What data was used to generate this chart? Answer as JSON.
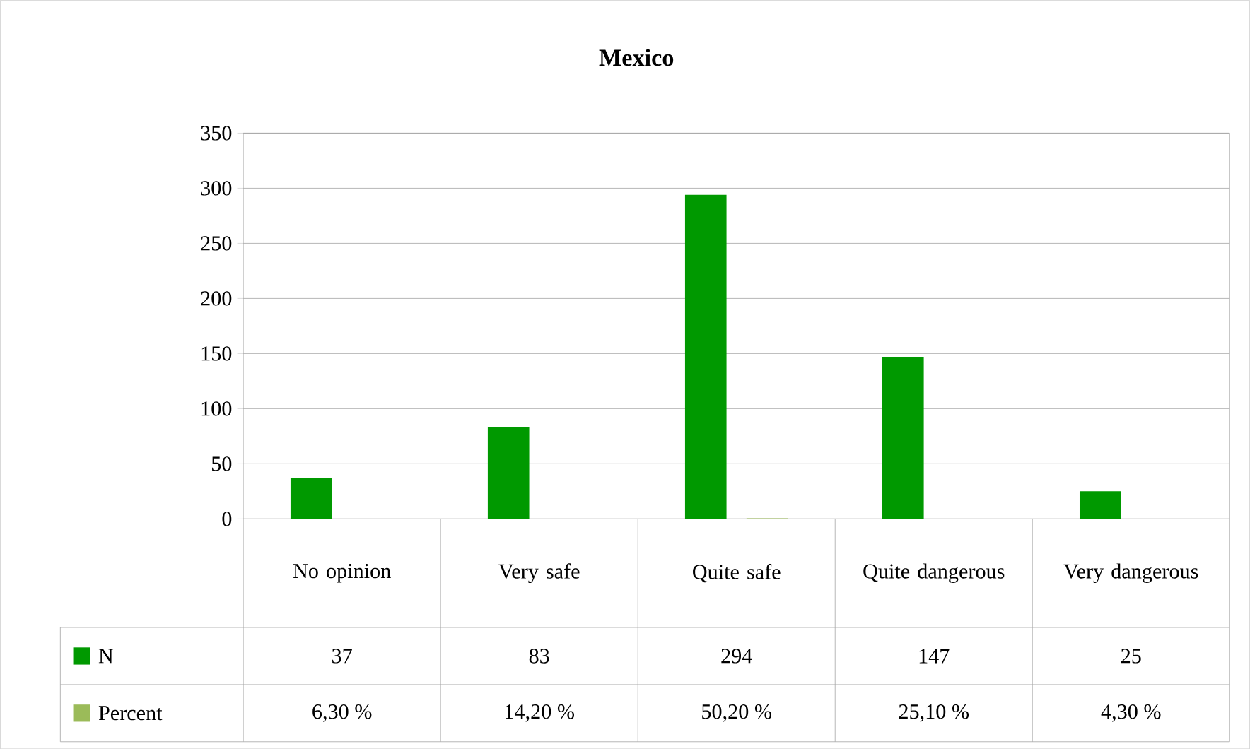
{
  "chart_data": {
    "type": "bar",
    "title": "Mexico",
    "categories": [
      "No opinion",
      "Very safe",
      "Quite safe",
      "Quite dangerous",
      "Very dangerous"
    ],
    "series": [
      {
        "name": "N",
        "color": "#009900",
        "values": [
          37,
          83,
          294,
          147,
          25
        ],
        "value_labels": [
          "37",
          "83",
          "294",
          "147",
          "25"
        ]
      },
      {
        "name": "Percent",
        "color": "#9bbb59",
        "values": [
          0.063,
          0.142,
          0.502,
          0.251,
          0.043
        ],
        "value_labels": [
          "6,30 %",
          "14,20 %",
          "50,20 %",
          "25,10 %",
          "4,30 %"
        ]
      }
    ],
    "ylim": [
      0,
      350
    ],
    "yticks": [
      0,
      50,
      100,
      150,
      200,
      250,
      300,
      350
    ],
    "grid": "y",
    "legend": "bottom"
  }
}
